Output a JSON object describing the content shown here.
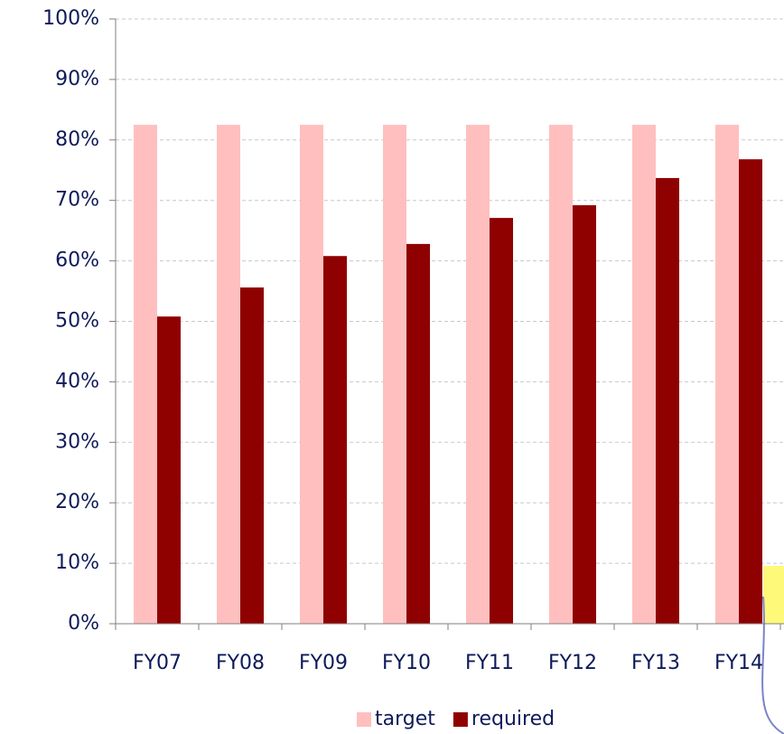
{
  "chart_data": {
    "type": "bar",
    "categories": [
      "FY07",
      "FY08",
      "FY09",
      "FY10",
      "FY11",
      "FY12",
      "FY13",
      "FY14"
    ],
    "series": [
      {
        "name": "target",
        "color": "#ffbfbf",
        "values": [
          82.5,
          82.5,
          82.5,
          82.5,
          82.5,
          82.5,
          82.5,
          82.5
        ]
      },
      {
        "name": "required",
        "color": "#8f0000",
        "values": [
          50.8,
          55.6,
          60.8,
          62.8,
          67.1,
          69.2,
          73.7,
          76.8
        ]
      }
    ],
    "ylim": [
      0,
      100
    ],
    "yticks": [
      {
        "value": 0,
        "label": "0%"
      },
      {
        "value": 10,
        "label": "10%"
      },
      {
        "value": 20,
        "label": "20%"
      },
      {
        "value": 30,
        "label": "30%"
      },
      {
        "value": 40,
        "label": "40%"
      },
      {
        "value": 50,
        "label": "50%"
      },
      {
        "value": 60,
        "label": "60%"
      },
      {
        "value": 70,
        "label": "70%"
      },
      {
        "value": 80,
        "label": "80%"
      },
      {
        "value": 90,
        "label": "90%"
      },
      {
        "value": 100,
        "label": "100%"
      }
    ],
    "grid": true,
    "legend": "bottom"
  }
}
